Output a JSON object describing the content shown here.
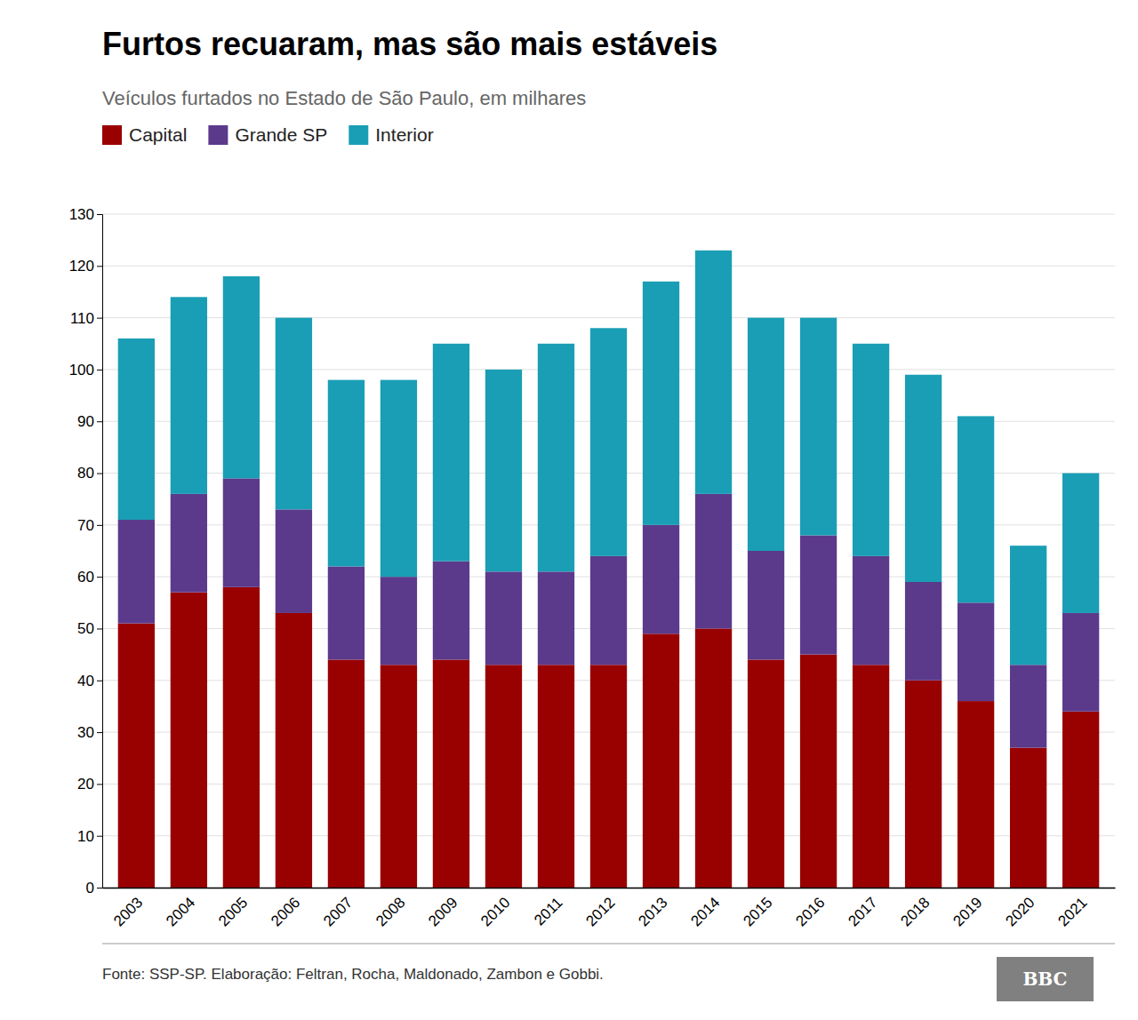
{
  "chart_data": {
    "type": "bar",
    "title": "Furtos recuaram, mas são mais estáveis",
    "subtitle": "Veículos furtados no Estado de São Paulo, em milhares",
    "source": "Fonte: SSP-SP. Elaboração: Feltran, Rocha, Maldonado, Zambon e Gobbi.",
    "logo": "BBC",
    "categories": [
      "2003",
      "2004",
      "2005",
      "2006",
      "2007",
      "2008",
      "2009",
      "2010",
      "2011",
      "2012",
      "2013",
      "2014",
      "2015",
      "2016",
      "2017",
      "2018",
      "2019",
      "2020",
      "2021"
    ],
    "series": [
      {
        "name": "Capital",
        "color": "#990000",
        "values": [
          51,
          57,
          58,
          53,
          44,
          43,
          44,
          43,
          43,
          43,
          49,
          50,
          44,
          45,
          43,
          40,
          36,
          27,
          34
        ]
      },
      {
        "name": "Grande SP",
        "color": "#5b3a8c",
        "values": [
          20,
          19,
          21,
          20,
          18,
          17,
          19,
          18,
          18,
          21,
          21,
          26,
          21,
          23,
          21,
          19,
          19,
          16,
          19
        ]
      },
      {
        "name": "Interior",
        "color": "#1a9eb5",
        "values": [
          35,
          38,
          39,
          37,
          36,
          38,
          42,
          39,
          44,
          44,
          47,
          47,
          45,
          42,
          41,
          40,
          36,
          23,
          27
        ]
      }
    ],
    "stacked": true,
    "ylim": [
      0,
      130
    ],
    "yticks": [
      0,
      10,
      20,
      30,
      40,
      50,
      60,
      70,
      80,
      90,
      100,
      110,
      120,
      130
    ],
    "grid": true,
    "legend": "top-left"
  }
}
